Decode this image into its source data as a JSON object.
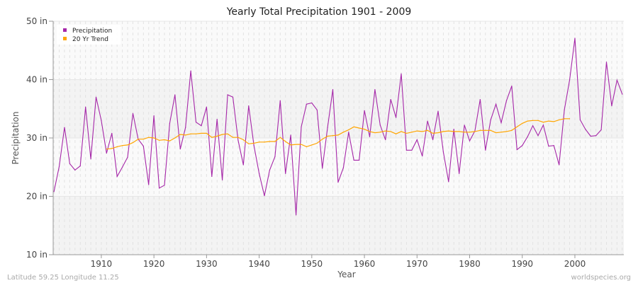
{
  "chart_data": {
    "type": "line",
    "title": "Yearly Total Precipitation 1901 - 2009",
    "xlabel": "Year",
    "ylabel": "Precipitation",
    "xlim": [
      1901,
      2009
    ],
    "ylim": [
      10,
      50
    ],
    "x_ticks": [
      1910,
      1920,
      1930,
      1940,
      1950,
      1960,
      1970,
      1980,
      1990,
      2000
    ],
    "x_tick_labels": [
      "1910",
      "1920",
      "1930",
      "1940",
      "1950",
      "1960",
      "1970",
      "1980",
      "1990",
      "2000"
    ],
    "y_ticks": [
      10,
      20,
      30,
      40,
      50
    ],
    "y_tick_labels": [
      "10 in",
      "20 in",
      "30 in",
      "40 in",
      "50 in"
    ],
    "grid": true,
    "legend_position": "top-left",
    "series": [
      {
        "name": "Precipitation",
        "color": "#a526a8",
        "x_start": 1901,
        "values": [
          20.8,
          25.1,
          31.8,
          25.6,
          24.5,
          25.2,
          35.3,
          26.4,
          37.0,
          33.0,
          27.4,
          30.8,
          23.4,
          25.0,
          26.7,
          34.2,
          29.8,
          28.6,
          22.0,
          33.8,
          21.4,
          21.9,
          32.5,
          37.4,
          28.1,
          31.8,
          41.5,
          32.7,
          32.1,
          35.3,
          23.4,
          33.2,
          22.8,
          37.4,
          37.0,
          29.6,
          25.4,
          35.5,
          28.7,
          23.9,
          20.1,
          24.5,
          26.8,
          36.4,
          23.9,
          30.5,
          16.8,
          31.9,
          35.8,
          36.0,
          34.8,
          24.8,
          31.8,
          38.3,
          22.4,
          24.9,
          31.0,
          26.2,
          26.2,
          34.7,
          30.2,
          38.3,
          32.2,
          29.7,
          36.6,
          33.5,
          41.0,
          27.9,
          27.9,
          29.7,
          26.9,
          32.9,
          29.7,
          34.6,
          27.6,
          22.5,
          31.5,
          23.9,
          32.2,
          29.5,
          31.2,
          36.6,
          27.9,
          33.1,
          35.8,
          32.6,
          36.4,
          38.9,
          28.0,
          28.7,
          30.2,
          32.1,
          30.4,
          32.2,
          28.6,
          28.7,
          25.4,
          34.8,
          39.9,
          47.1,
          33.1,
          31.5,
          30.3,
          30.4,
          31.4,
          43.0,
          35.5,
          39.9,
          37.5
        ]
      },
      {
        "name": "20 Yr Trend",
        "color": "#ffa500",
        "x_start": 1911,
        "values": [
          28.1,
          28.2,
          28.5,
          28.7,
          28.8,
          29.2,
          29.8,
          29.8,
          30.1,
          30.0,
          29.6,
          29.7,
          29.5,
          30.0,
          30.6,
          30.5,
          30.7,
          30.7,
          30.8,
          30.8,
          30.1,
          30.3,
          30.6,
          30.7,
          30.1,
          30.1,
          29.7,
          29.0,
          29.1,
          29.3,
          29.3,
          29.4,
          29.4,
          30.1,
          29.4,
          28.8,
          28.9,
          28.9,
          28.5,
          28.8,
          29.1,
          29.8,
          30.3,
          30.4,
          30.5,
          31.0,
          31.4,
          31.9,
          31.7,
          31.5,
          31.1,
          30.9,
          31.0,
          31.2,
          31.1,
          30.7,
          31.1,
          30.8,
          31.0,
          31.2,
          31.1,
          31.3,
          30.8,
          30.9,
          31.1,
          31.2,
          31.1,
          31.1,
          31.0,
          31.0,
          31.1,
          31.3,
          31.3,
          31.3,
          30.9,
          31.0,
          31.1,
          31.3,
          31.9,
          32.5,
          32.9,
          33.0,
          33.0,
          32.7,
          32.9,
          32.8,
          33.1,
          33.3,
          33.3
        ]
      }
    ]
  },
  "footer": {
    "location": "Latitude 59.25 Longitude 11.25",
    "source": "worldspecies.org"
  }
}
